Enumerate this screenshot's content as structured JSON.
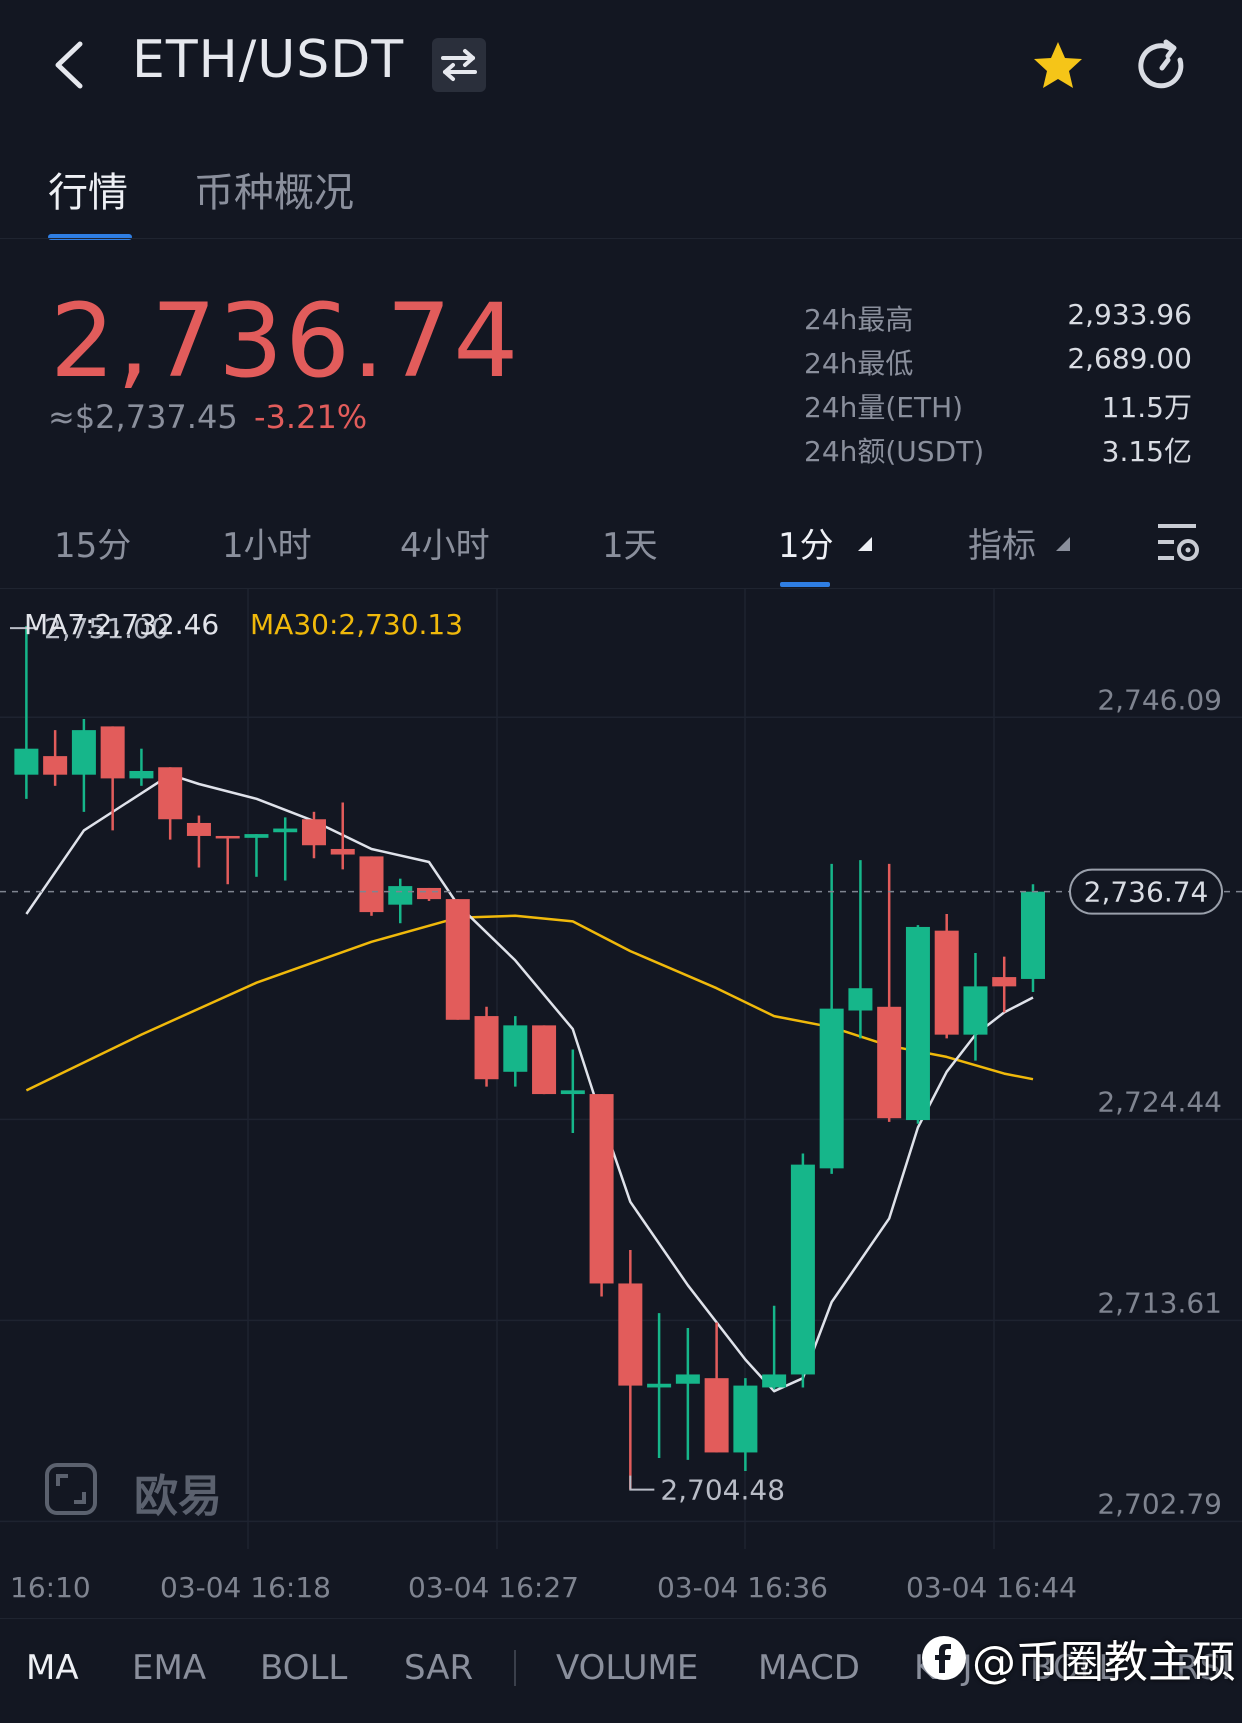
{
  "header": {
    "pair": "ETH/USDT"
  },
  "tabs": [
    {
      "label": "行情",
      "active": true
    },
    {
      "label": "币种概况",
      "active": false
    }
  ],
  "price": {
    "last": "2,736.74",
    "approx_usd": "≈$2,737.45",
    "change_pct": "-3.21%",
    "stats": [
      {
        "label": "24h最高",
        "value": "2,933.96"
      },
      {
        "label": "24h最低",
        "value": "2,689.00"
      },
      {
        "label": "24h量(ETH)",
        "value": "11.5万"
      },
      {
        "label": "24h额(USDT)",
        "value": "3.15亿"
      }
    ]
  },
  "periods": [
    "15分",
    "1小时",
    "4小时",
    "1天",
    "1分",
    "指标"
  ],
  "active_period": "1分",
  "chart": {
    "ma7_label": "MA7:2,732.46",
    "ma30_label": "MA30:2,730.13",
    "high_marker": "2,751.00",
    "low_marker": "2,704.48",
    "current_price_tag": "2,736.74",
    "watermark": "欧易"
  },
  "colors": {
    "up": "#16b68a",
    "down": "#e25c5b",
    "ma7": "#dfe2ea",
    "ma30": "#f0b90b",
    "accent": "#2f7ee3"
  },
  "indicators": [
    "MA",
    "EMA",
    "BOLL",
    "SAR",
    "VOLUME",
    "MACD",
    "KDJ",
    "BOLL",
    "RSI"
  ],
  "credit": "@币圈教主硕",
  "chart_data": {
    "type": "candlestick",
    "interval": "1分",
    "y_ticks": [
      2746.09,
      2724.44,
      2713.61,
      2702.79
    ],
    "y_tick_labels": [
      "2,746.09",
      "2,724.44",
      "2,713.61",
      "2,702.79"
    ],
    "x_tick_labels": [
      "16:10",
      "03-04 16:18",
      "03-04 16:27",
      "03-04 16:36",
      "03-04 16:44"
    ],
    "ylim": [
      2701.3,
      2753.0
    ],
    "candles": [
      {
        "o": 2743.0,
        "h": 2751.0,
        "l": 2741.7,
        "c": 2744.4
      },
      {
        "o": 2744.0,
        "h": 2745.4,
        "l": 2742.4,
        "c": 2743.0
      },
      {
        "o": 2743.0,
        "h": 2746.0,
        "l": 2741.0,
        "c": 2745.4
      },
      {
        "o": 2745.6,
        "h": 2745.6,
        "l": 2740.0,
        "c": 2742.8
      },
      {
        "o": 2742.8,
        "h": 2744.4,
        "l": 2742.4,
        "c": 2743.2
      },
      {
        "o": 2743.4,
        "h": 2743.4,
        "l": 2739.5,
        "c": 2740.6
      },
      {
        "o": 2740.4,
        "h": 2740.8,
        "l": 2738.0,
        "c": 2739.7
      },
      {
        "o": 2739.7,
        "h": 2739.7,
        "l": 2737.1,
        "c": 2739.6
      },
      {
        "o": 2739.6,
        "h": 2739.8,
        "l": 2737.5,
        "c": 2739.8
      },
      {
        "o": 2739.9,
        "h": 2740.7,
        "l": 2737.3,
        "c": 2740.1
      },
      {
        "o": 2740.6,
        "h": 2741.0,
        "l": 2738.5,
        "c": 2739.2
      },
      {
        "o": 2739.0,
        "h": 2741.5,
        "l": 2737.9,
        "c": 2738.7
      },
      {
        "o": 2738.6,
        "h": 2738.6,
        "l": 2735.4,
        "c": 2735.6
      },
      {
        "o": 2736.0,
        "h": 2737.4,
        "l": 2735.0,
        "c": 2737.0
      },
      {
        "o": 2736.9,
        "h": 2736.9,
        "l": 2736.2,
        "c": 2736.3
      },
      {
        "o": 2736.3,
        "h": 2736.3,
        "l": 2729.8,
        "c": 2729.8
      },
      {
        "o": 2730.0,
        "h": 2730.5,
        "l": 2726.2,
        "c": 2726.6
      },
      {
        "o": 2727.0,
        "h": 2730.0,
        "l": 2726.2,
        "c": 2729.5
      },
      {
        "o": 2729.5,
        "h": 2729.5,
        "l": 2725.8,
        "c": 2725.8
      },
      {
        "o": 2725.8,
        "h": 2728.2,
        "l": 2723.7,
        "c": 2726.0
      },
      {
        "o": 2725.8,
        "h": 2725.8,
        "l": 2714.9,
        "c": 2715.6
      },
      {
        "o": 2715.6,
        "h": 2717.4,
        "l": 2704.5,
        "c": 2710.1
      },
      {
        "o": 2710.0,
        "h": 2714.0,
        "l": 2706.2,
        "c": 2710.2
      },
      {
        "o": 2710.2,
        "h": 2713.2,
        "l": 2706.1,
        "c": 2710.7
      },
      {
        "o": 2710.5,
        "h": 2713.5,
        "l": 2706.5,
        "c": 2706.5
      },
      {
        "o": 2706.5,
        "h": 2710.5,
        "l": 2705.5,
        "c": 2710.1
      },
      {
        "o": 2710.0,
        "h": 2714.4,
        "l": 2709.9,
        "c": 2710.7
      },
      {
        "o": 2710.7,
        "h": 2722.6,
        "l": 2710.0,
        "c": 2722.0
      },
      {
        "o": 2721.8,
        "h": 2738.2,
        "l": 2721.5,
        "c": 2730.4
      },
      {
        "o": 2730.3,
        "h": 2738.4,
        "l": 2728.8,
        "c": 2731.5
      },
      {
        "o": 2730.5,
        "h": 2738.2,
        "l": 2724.3,
        "c": 2724.5
      },
      {
        "o": 2724.4,
        "h": 2734.9,
        "l": 2724.2,
        "c": 2734.8
      },
      {
        "o": 2734.6,
        "h": 2735.5,
        "l": 2728.8,
        "c": 2729.0
      },
      {
        "o": 2729.0,
        "h": 2733.4,
        "l": 2727.6,
        "c": 2731.6
      },
      {
        "o": 2732.1,
        "h": 2733.2,
        "l": 2730.2,
        "c": 2731.6
      },
      {
        "o": 2732.0,
        "h": 2737.1,
        "l": 2731.3,
        "c": 2736.7
      }
    ],
    "ma7_line": [
      [
        0,
        2735.5
      ],
      [
        2,
        2740.0
      ],
      [
        4,
        2742.0
      ],
      [
        5,
        2743.0
      ],
      [
        6,
        2742.5
      ],
      [
        8,
        2741.7
      ],
      [
        10,
        2740.5
      ],
      [
        12,
        2739.0
      ],
      [
        14,
        2738.3
      ],
      [
        15,
        2736.0
      ],
      [
        17,
        2733.0
      ],
      [
        19,
        2729.3
      ],
      [
        20,
        2724.5
      ],
      [
        21,
        2720.0
      ],
      [
        23,
        2715.5
      ],
      [
        25,
        2711.5
      ],
      [
        26,
        2709.8
      ],
      [
        27,
        2710.5
      ],
      [
        28,
        2714.6
      ],
      [
        30,
        2719.1
      ],
      [
        31,
        2724.0
      ],
      [
        32,
        2727.0
      ],
      [
        33,
        2729.0
      ],
      [
        34,
        2730.2
      ],
      [
        35,
        2731.0
      ]
    ],
    "ma30_line": [
      [
        0,
        2726.0
      ],
      [
        4,
        2729.0
      ],
      [
        8,
        2731.8
      ],
      [
        12,
        2734.0
      ],
      [
        15,
        2735.3
      ],
      [
        17,
        2735.4
      ],
      [
        19,
        2735.1
      ],
      [
        21,
        2733.5
      ],
      [
        24,
        2731.5
      ],
      [
        26,
        2730.0
      ],
      [
        28,
        2729.4
      ],
      [
        30,
        2728.4
      ],
      [
        32,
        2727.8
      ],
      [
        34,
        2726.9
      ],
      [
        35,
        2726.6
      ]
    ]
  }
}
